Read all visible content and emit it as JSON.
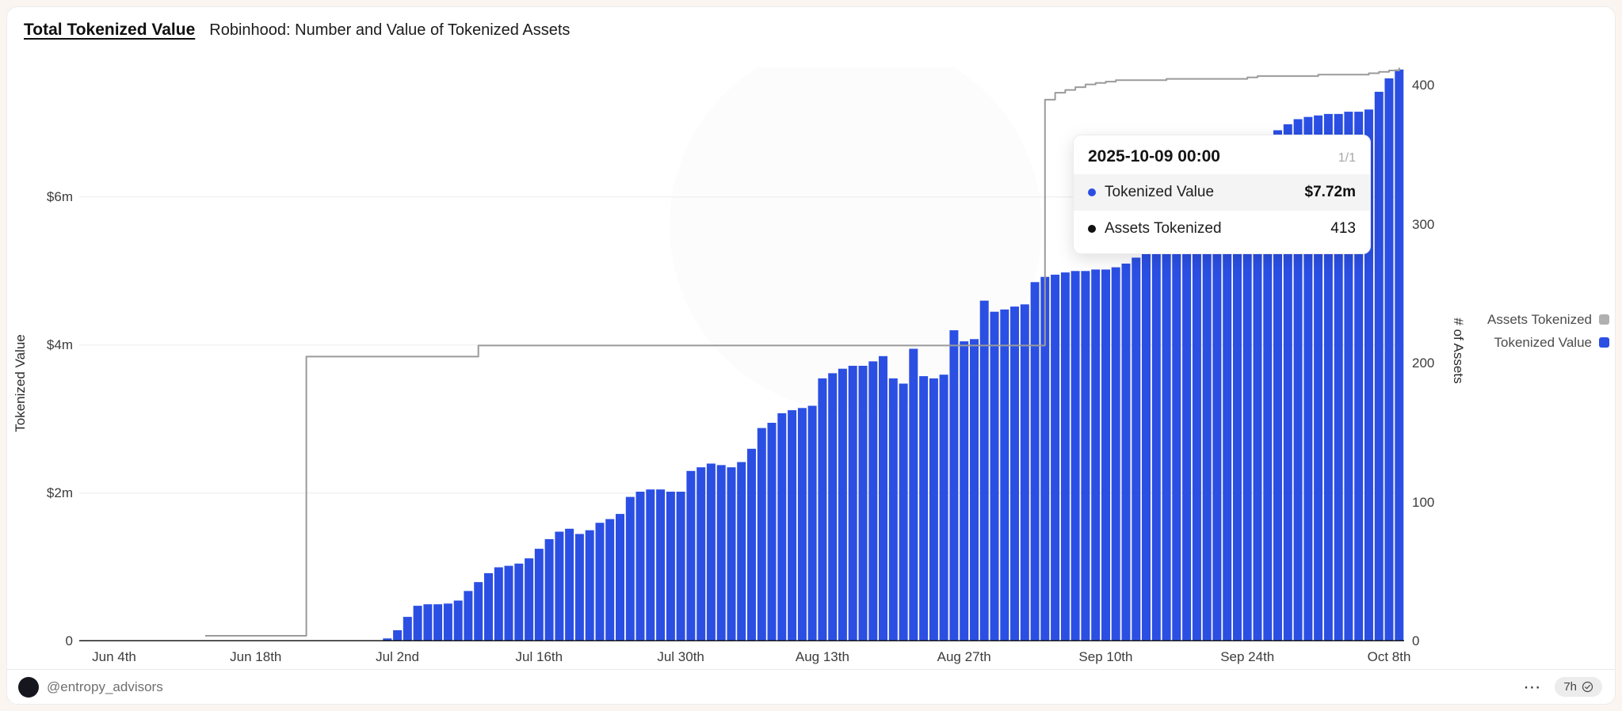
{
  "header": {
    "title": "Total Tokenized Value",
    "subtitle": "Robinhood: Number and Value of Tokenized Assets"
  },
  "chart_data": {
    "type": "bar",
    "title": "Robinhood: Number and Value of Tokenized Assets",
    "start_date": "2025-06-04",
    "end_date": "2025-10-09",
    "frequency": "daily",
    "grid": true,
    "x_ticks": {
      "day_indices": [
        0,
        14,
        28,
        42,
        56,
        70,
        84,
        98,
        112,
        126
      ],
      "labels": [
        "Jun 4th",
        "Jun 18th",
        "Jul 2nd",
        "Jul 16th",
        "Jul 30th",
        "Aug 13th",
        "Aug 27th",
        "Sep 10th",
        "Sep 24th",
        "Oct 8th"
      ]
    },
    "y_left": {
      "title": "Tokenized Value",
      "unit": "USD millions",
      "max": 7.75,
      "ticks": [
        {
          "value": 0,
          "label": "0"
        },
        {
          "value": 2,
          "label": "$2m"
        },
        {
          "value": 4,
          "label": "$4m"
        },
        {
          "value": 6,
          "label": "$6m"
        }
      ]
    },
    "y_right": {
      "title": "# of Assets",
      "max": 413.3,
      "ticks": [
        {
          "value": 0,
          "label": "0"
        },
        {
          "value": 100,
          "label": "100"
        },
        {
          "value": 200,
          "label": "200"
        },
        {
          "value": 300,
          "label": "300"
        },
        {
          "value": 400,
          "label": "400"
        }
      ]
    },
    "series": [
      {
        "name": "Tokenized Value",
        "type": "bar",
        "axis": "left",
        "color": "#2b4fe3",
        "values": [
          0,
          0,
          0,
          0,
          0,
          0,
          0,
          0,
          0,
          0,
          0,
          0,
          0,
          0,
          0,
          0,
          0,
          0,
          0,
          0,
          0,
          0,
          0,
          0,
          0,
          0,
          0,
          0.04,
          0.15,
          0.33,
          0.48,
          0.5,
          0.5,
          0.51,
          0.55,
          0.68,
          0.8,
          0.92,
          1.0,
          1.02,
          1.05,
          1.12,
          1.25,
          1.38,
          1.48,
          1.52,
          1.45,
          1.5,
          1.6,
          1.65,
          1.72,
          1.95,
          2.02,
          2.05,
          2.05,
          2.02,
          2.02,
          2.3,
          2.35,
          2.4,
          2.38,
          2.35,
          2.42,
          2.6,
          2.88,
          2.95,
          3.08,
          3.12,
          3.15,
          3.18,
          3.55,
          3.62,
          3.68,
          3.72,
          3.72,
          3.78,
          3.85,
          3.55,
          3.48,
          3.95,
          3.58,
          3.55,
          3.6,
          4.2,
          4.05,
          4.08,
          4.6,
          4.45,
          4.48,
          4.52,
          4.55,
          4.85,
          4.92,
          4.95,
          4.98,
          5.0,
          5.0,
          5.02,
          5.02,
          5.05,
          5.1,
          5.18,
          5.25,
          5.35,
          5.5,
          5.65,
          5.8,
          5.95,
          6.1,
          6.25,
          6.4,
          6.52,
          6.62,
          6.72,
          6.82,
          6.9,
          6.98,
          7.05,
          7.08,
          7.1,
          7.12,
          7.12,
          7.15,
          7.15,
          7.18,
          7.42,
          7.6,
          7.72
        ]
      },
      {
        "name": "Assets Tokenized",
        "type": "step-line",
        "axis": "right",
        "color": "#9b9b9b",
        "points": [
          [
            9,
            4
          ],
          [
            19,
            205
          ],
          [
            36,
            213
          ],
          [
            92,
            390
          ],
          [
            93,
            395
          ],
          [
            94,
            397
          ],
          [
            95,
            399
          ],
          [
            96,
            401
          ],
          [
            97,
            402
          ],
          [
            98,
            403
          ],
          [
            99,
            404
          ],
          [
            104,
            405
          ],
          [
            112,
            406
          ],
          [
            113,
            407
          ],
          [
            119,
            408
          ],
          [
            124,
            409
          ],
          [
            125,
            410
          ],
          [
            126,
            411
          ],
          [
            127,
            413
          ]
        ]
      }
    ]
  },
  "legend": [
    {
      "label": "Assets Tokenized",
      "color": "#b0b0b0"
    },
    {
      "label": "Tokenized Value",
      "color": "#2b4fe3"
    }
  ],
  "tooltip": {
    "title": "2025-10-09 00:00",
    "page": "1/1",
    "rows": [
      {
        "label": "Tokenized Value",
        "value": "$7.72m",
        "dot_color": "#2b4fe3"
      },
      {
        "label": "Assets Tokenized",
        "value": "413",
        "dot_color": "#111111"
      }
    ]
  },
  "footer": {
    "handle": "@entropy_advisors",
    "menu": "⋯",
    "age": "7h"
  },
  "colors": {
    "bar": "#2b4fe3",
    "line": "#9b9b9b",
    "grid": "#ebebeb",
    "axis": "#1b1b1b",
    "page_background": "#fbf5f2",
    "card_background": "#ffffff"
  }
}
